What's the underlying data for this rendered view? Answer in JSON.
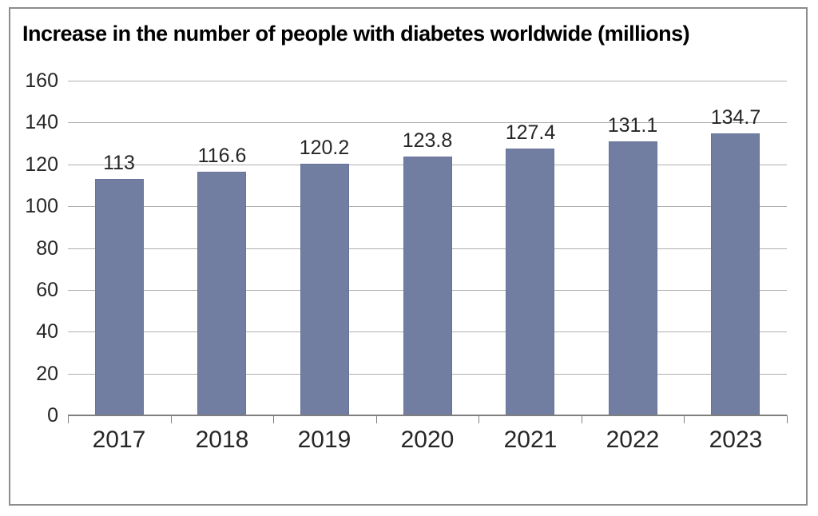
{
  "chart_data": {
    "type": "bar",
    "title": "Increase in the number of people with diabetes worldwide (millions)",
    "categories": [
      "2017",
      "2018",
      "2019",
      "2020",
      "2021",
      "2022",
      "2023"
    ],
    "values": [
      113,
      116.6,
      120.2,
      123.8,
      127.4,
      131.1,
      134.7
    ],
    "data_labels": [
      "113",
      "116.6",
      "120.2",
      "123.8",
      "127.4",
      "131.1",
      "134.7"
    ],
    "xlabel": "",
    "ylabel": "",
    "ylim": [
      0,
      160
    ],
    "ytick_step": 20,
    "ytick_labels": [
      "0",
      "20",
      "40",
      "60",
      "80",
      "100",
      "120",
      "140",
      "160"
    ],
    "grid": "horizontal",
    "legend": "none",
    "colors": {
      "bar_fill": "#717EA1",
      "bar_border": "#67739A",
      "gridline": "#AFAFAF",
      "axis_line": "#7F7F7F",
      "frame_border": "#8C8C8C",
      "background": "#FFFFFF",
      "title_text": "#000000",
      "label_text": "#262626"
    }
  }
}
